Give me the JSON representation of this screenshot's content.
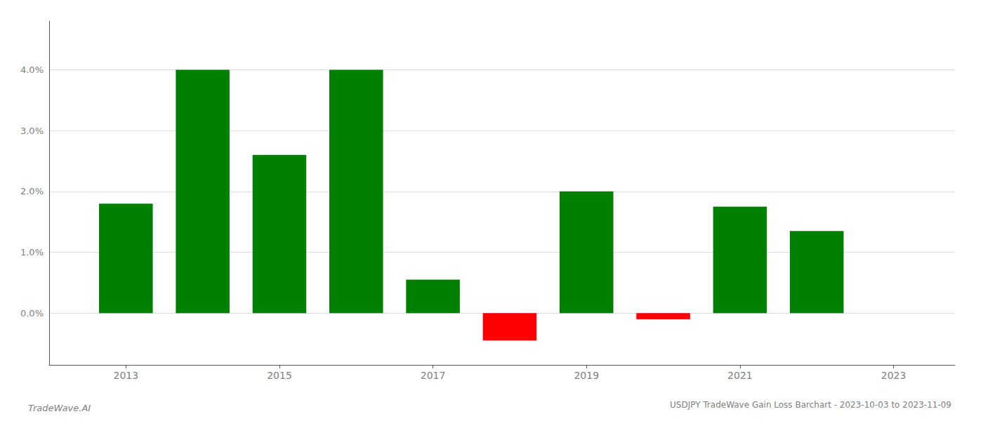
{
  "chart_data": {
    "type": "bar",
    "title": "USDJPY TradeWave Gain Loss Barchart - 2023-10-03 to 2023-11-09",
    "annotations": [
      "TradeWave.AI"
    ],
    "x": [
      2013,
      2014,
      2015,
      2016,
      2017,
      2018,
      2019,
      2020,
      2021,
      2022
    ],
    "values": [
      0.018,
      0.04,
      0.026,
      0.04,
      0.0055,
      -0.0045,
      0.02,
      -0.001,
      0.0175,
      0.0135
    ],
    "colors": [
      "#008000",
      "#008000",
      "#008000",
      "#008000",
      "#008000",
      "#ff0000",
      "#008000",
      "#ff0000",
      "#008000",
      "#008000"
    ],
    "xlim": [
      2012.0,
      2023.8
    ],
    "xticks": [
      2013,
      2015,
      2017,
      2019,
      2021,
      2023
    ],
    "ylim": [
      -0.0085,
      0.048
    ],
    "yticks": [
      {
        "value": 0.0,
        "label": "0.0%"
      },
      {
        "value": 0.01,
        "label": "1.0%"
      },
      {
        "value": 0.02,
        "label": "2.0%"
      },
      {
        "value": 0.03,
        "label": "3.0%"
      },
      {
        "value": 0.04,
        "label": "4.0%"
      }
    ],
    "grid": true
  }
}
